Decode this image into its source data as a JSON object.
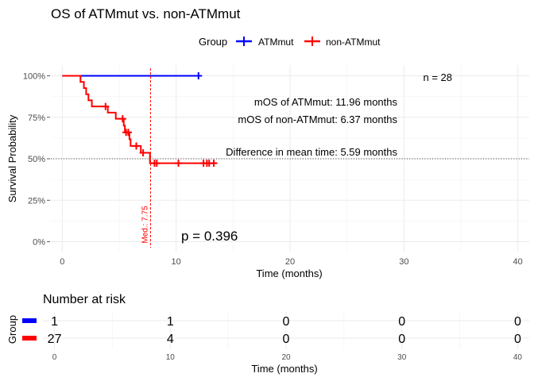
{
  "chart_data": [
    {
      "type": "line",
      "subtype": "kaplan-meier",
      "title": "OS of ATMmut vs. non-ATMmut",
      "xlabel": "Time (months)",
      "ylabel": "Survival Probability",
      "xlim": [
        -1,
        41
      ],
      "ylim": [
        0,
        1
      ],
      "x_ticks": [
        0,
        10,
        20,
        30,
        40
      ],
      "y_ticks": [
        0,
        0.25,
        0.5,
        0.75,
        1.0
      ],
      "y_tick_labels": [
        "0%",
        "25%",
        "50%",
        "75%",
        "100%"
      ],
      "grid": true,
      "legend": {
        "title": "Group",
        "position": "top"
      },
      "series": [
        {
          "name": "ATMmut",
          "color": "#0000ff",
          "steps": [
            [
              0,
              1.0
            ],
            [
              11.96,
              1.0
            ]
          ],
          "censor_times": [
            11.96
          ]
        },
        {
          "name": "non-ATMmut",
          "color": "#ff0000",
          "steps": [
            [
              0,
              1.0
            ],
            [
              1.6,
              0.963
            ],
            [
              1.9,
              0.926
            ],
            [
              2.1,
              0.889
            ],
            [
              2.3,
              0.852
            ],
            [
              2.6,
              0.815
            ],
            [
              4.0,
              0.778
            ],
            [
              4.7,
              0.741
            ],
            [
              5.2,
              0.741
            ],
            [
              5.4,
              0.7
            ],
            [
              5.5,
              0.659
            ],
            [
              5.9,
              0.618
            ],
            [
              6.0,
              0.577
            ],
            [
              6.9,
              0.536
            ],
            [
              7.7,
              0.473
            ],
            [
              13.6,
              0.473
            ]
          ],
          "censor_times": [
            3.8,
            5.3,
            5.6,
            5.8,
            6.5,
            7.1,
            8.1,
            8.3,
            10.2,
            12.4,
            12.7,
            12.9,
            13.3
          ]
        }
      ],
      "median_line": {
        "x": 7.75,
        "label": "Med.: 7.75",
        "color": "#ff0000"
      },
      "reference_line": {
        "y": 0.5
      },
      "annotations": {
        "n": "n = 28",
        "mos_atm": "mOS of ATMmut: 11.96 months",
        "mos_non": "mOS of non-ATMmut: 6.37 months",
        "diff": "Difference in mean time: 5.59 months",
        "pvalue": "p = 0.396"
      }
    },
    {
      "type": "table",
      "title": "Number at risk",
      "ylabel": "Group",
      "xlabel": "Time (months)",
      "times": [
        0,
        10,
        20,
        30,
        40
      ],
      "rows": [
        {
          "name": "ATMmut",
          "color": "#0000ff",
          "values": [
            1,
            1,
            0,
            0,
            0
          ]
        },
        {
          "name": "non-ATMmut",
          "color": "#ff0000",
          "values": [
            27,
            4,
            0,
            0,
            0
          ]
        }
      ]
    }
  ]
}
